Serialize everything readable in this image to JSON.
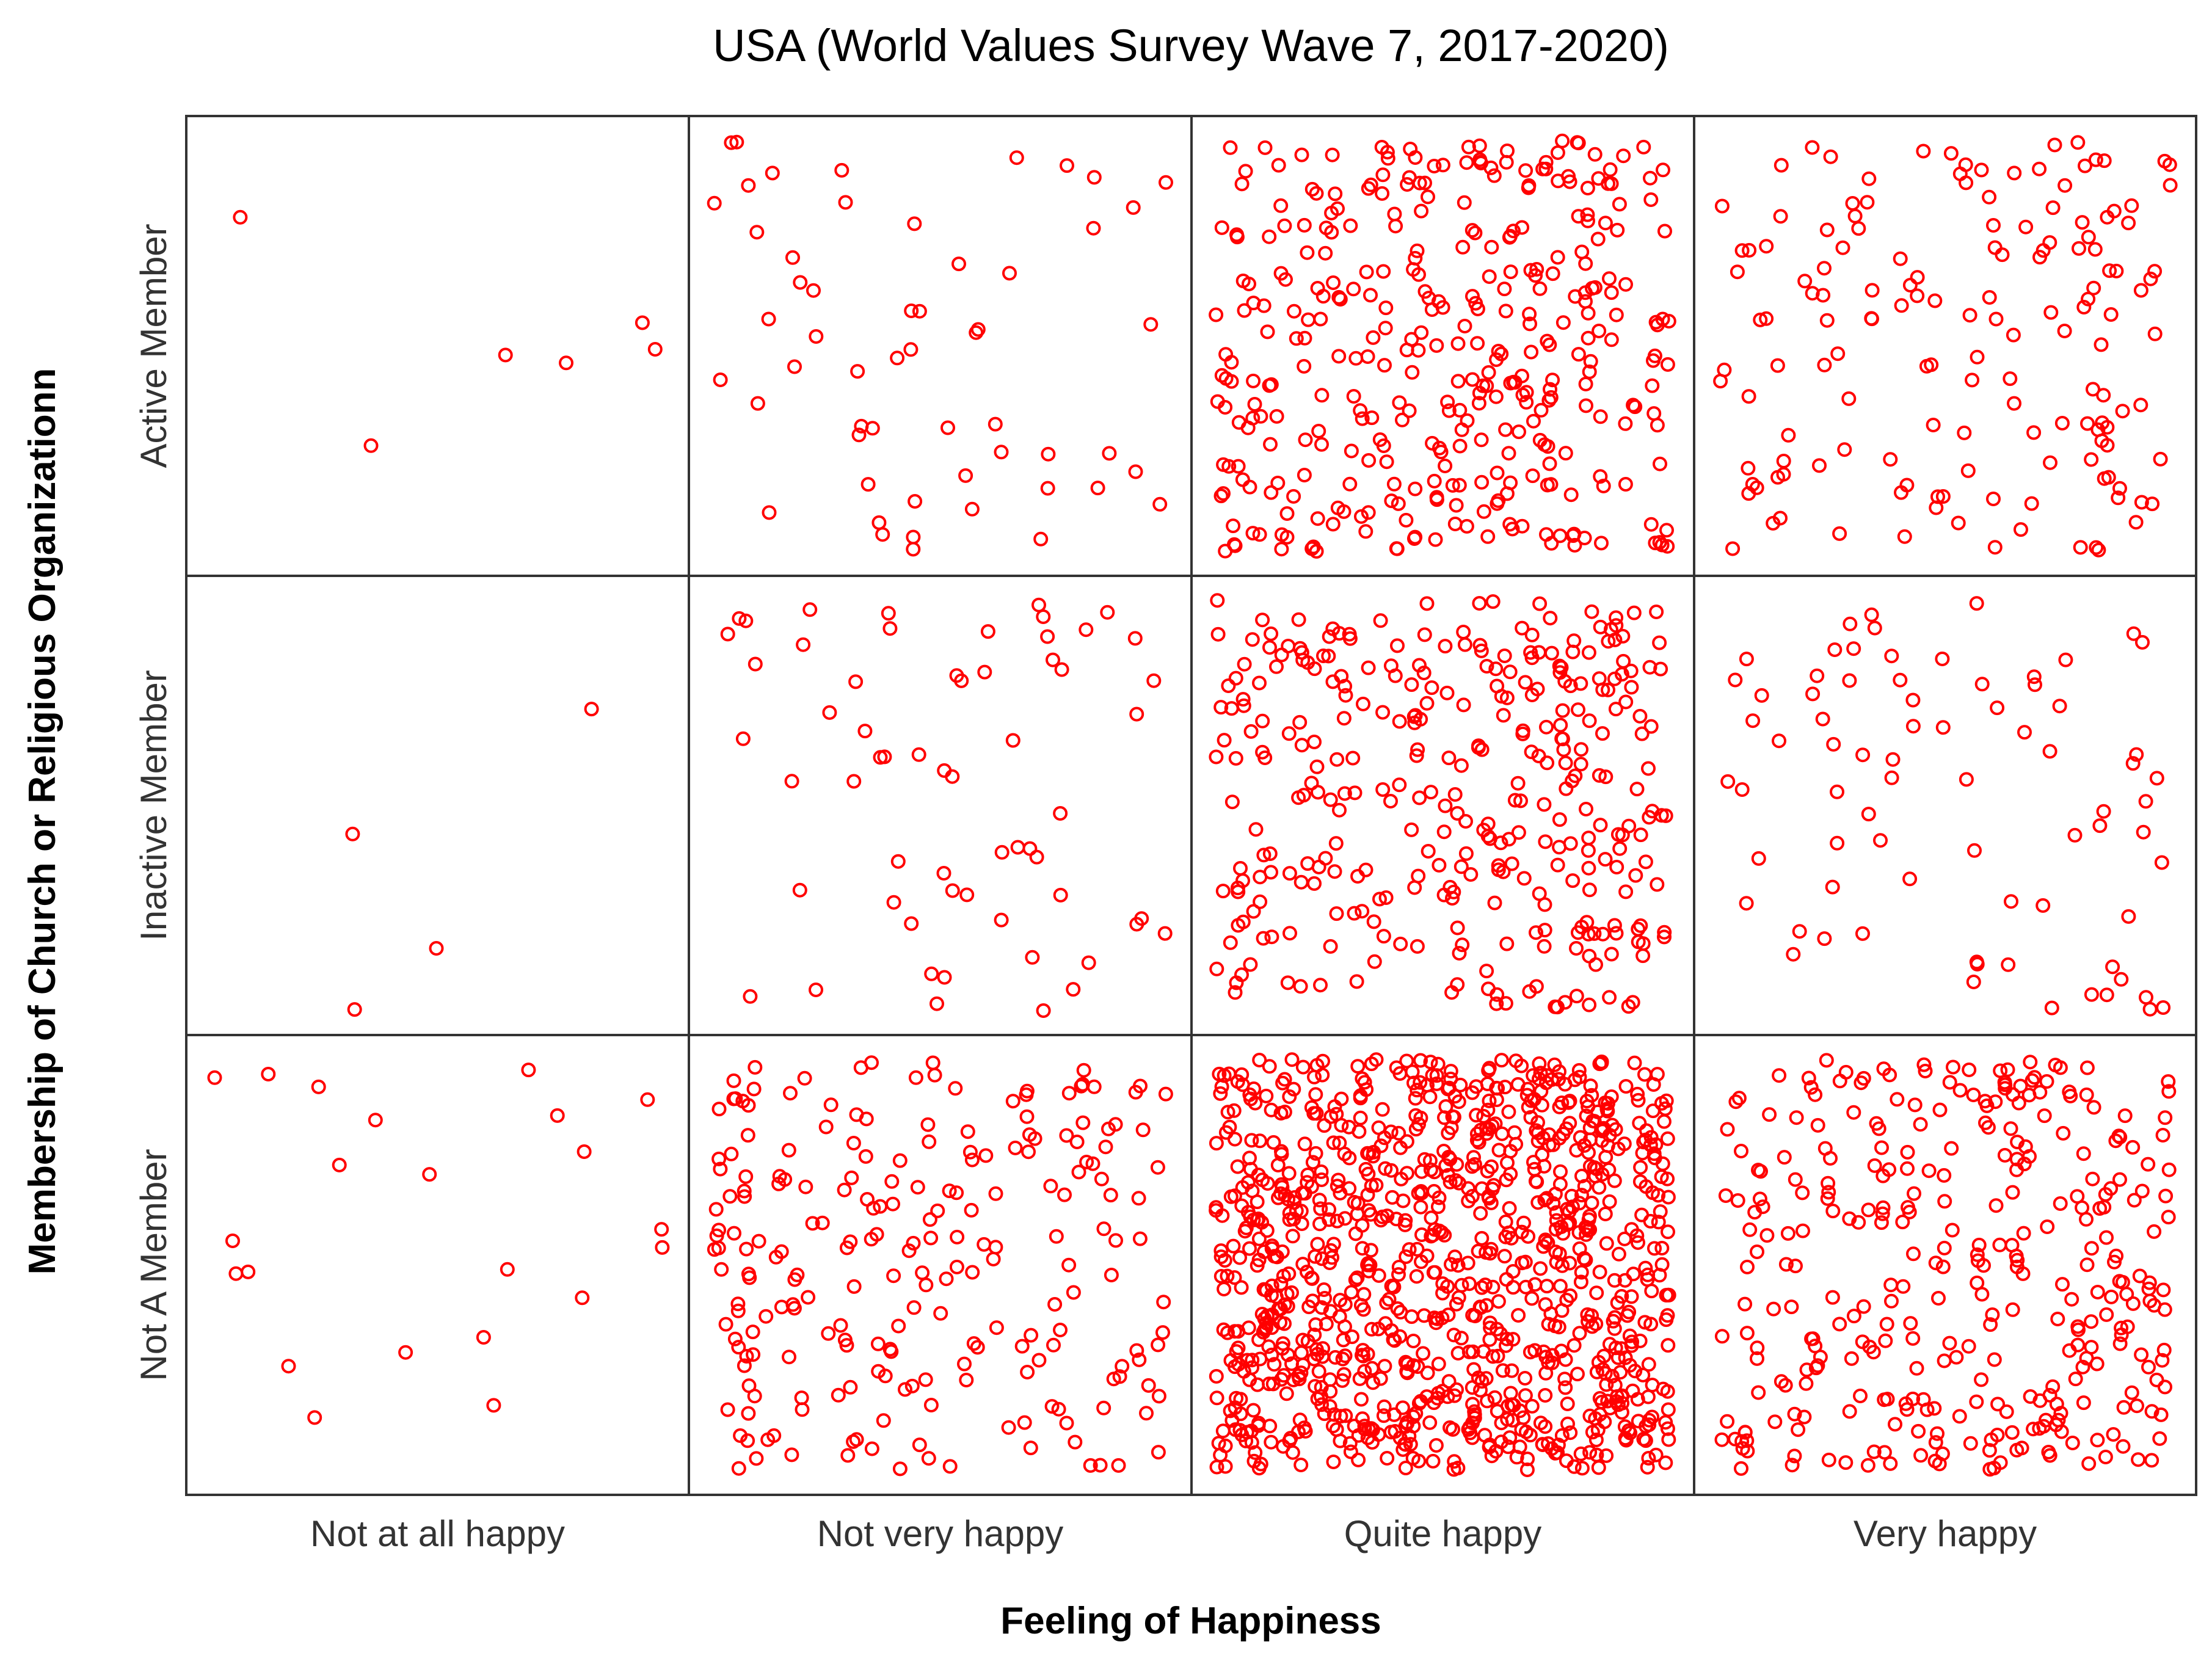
{
  "chart_data": {
    "type": "scatter",
    "subtype": "jittered categorical count plot",
    "title": "USA (World Values Survey Wave 7, 2017-2020)",
    "xlabel": "Feeling of Happiness",
    "ylabel": "Membership of Church or Religious Organizationn",
    "x_categories": [
      "Not at all happy",
      "Not very happy",
      "Quite happy",
      "Very happy"
    ],
    "y_categories": [
      "Active Member",
      "Inactive Member",
      "Not A Member"
    ],
    "point_color": "#ff0000",
    "grid": false,
    "counts": [
      {
        "membership": "Active Member",
        "happiness": "Not at all happy",
        "n": 6
      },
      {
        "membership": "Active Member",
        "happiness": "Not very happy",
        "n": 55
      },
      {
        "membership": "Active Member",
        "happiness": "Quite happy",
        "n": 355
      },
      {
        "membership": "Active Member",
        "happiness": "Very happy",
        "n": 150
      },
      {
        "membership": "Inactive Member",
        "happiness": "Not at all happy",
        "n": 4
      },
      {
        "membership": "Inactive Member",
        "happiness": "Not very happy",
        "n": 60
      },
      {
        "membership": "Inactive Member",
        "happiness": "Quite happy",
        "n": 330
      },
      {
        "membership": "Inactive Member",
        "happiness": "Very happy",
        "n": 75
      },
      {
        "membership": "Not A Member",
        "happiness": "Not at all happy",
        "n": 22
      },
      {
        "membership": "Not A Member",
        "happiness": "Not very happy",
        "n": 220
      },
      {
        "membership": "Not A Member",
        "happiness": "Quite happy",
        "n": 1000
      },
      {
        "membership": "Not A Member",
        "happiness": "Very happy",
        "n": 330
      }
    ]
  }
}
